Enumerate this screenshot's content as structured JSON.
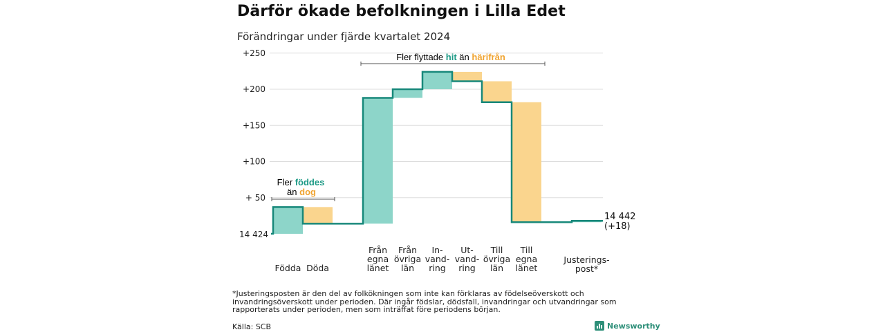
{
  "header": {
    "title": "Därför ökade befolkningen i Lilla Edet",
    "subtitle": "Förändringar under fjärde kvartalet 2024"
  },
  "colors": {
    "increase": "#8dd5c9",
    "decrease": "#fad58e",
    "line": "#17887a",
    "highlight_in": "#1d9a86",
    "highlight_out": "#f0a431",
    "grid": "#dddddd"
  },
  "annotations": {
    "births": {
      "line1": "Fler",
      "line1_hl": "föddes",
      "line2": "än",
      "line2_hl": "dog"
    },
    "moves": {
      "prefix": "Fler flyttade",
      "hl_in": "hit",
      "middle": "än",
      "hl_out": "härifrån"
    }
  },
  "chart_data": {
    "type": "waterfall",
    "title": "Därför ökade befolkningen i Lilla Edet",
    "subtitle": "Förändringar under fjärde kvartalet 2024",
    "start_label": "14 424",
    "end_label_line1": "14 442",
    "end_label_line2": "(+18)",
    "y_ticks": [
      {
        "value": 50,
        "label": "+ 50"
      },
      {
        "value": 100,
        "label": "+100"
      },
      {
        "value": 150,
        "label": "+150"
      },
      {
        "value": 200,
        "label": "+200"
      },
      {
        "value": 250,
        "label": "+250"
      }
    ],
    "ylim": [
      0,
      250
    ],
    "grid": true,
    "steps": [
      {
        "label": [
          "Födda"
        ],
        "delta": 37
      },
      {
        "label": [
          "Döda"
        ],
        "delta": -23
      },
      {
        "label": [
          "Från",
          "egna",
          "länet"
        ],
        "delta": 174
      },
      {
        "label": [
          "Från",
          "övriga",
          "län"
        ],
        "delta": 12
      },
      {
        "label": [
          "In-",
          "vand-",
          "ring"
        ],
        "delta": 24
      },
      {
        "label": [
          "Ut-",
          "vand-",
          "ring"
        ],
        "delta": -13
      },
      {
        "label": [
          "Till",
          "övriga",
          "län"
        ],
        "delta": -29
      },
      {
        "label": [
          "Till",
          "egna",
          "länet"
        ],
        "delta": -166
      },
      {
        "label": [
          "Justerings-",
          "post*"
        ],
        "delta": 2
      }
    ],
    "end_value": 18
  },
  "footer": {
    "footnote": "*Justeringsposten är den del av folkökningen som inte kan förklaras av födelseöverskott och invandringsöverskott under perioden. Där ingår födslar, dödsfall, invandringar och utvandringar som rapporterats under perioden, men som inträffat före periodens början.",
    "source": "Källa: SCB",
    "brand": "Newsworthy"
  }
}
